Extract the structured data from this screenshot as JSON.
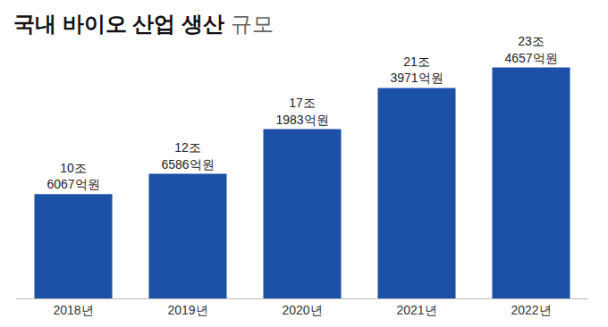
{
  "chart_data": {
    "type": "bar",
    "title": "국내 바이오 산업 생산 규모",
    "categories": [
      "2018년",
      "2019년",
      "2020년",
      "2021년",
      "2022년"
    ],
    "values": [
      106067,
      126586,
      171983,
      213971,
      234657
    ],
    "value_labels": [
      "10조 6067억원",
      "12조 6586억원",
      "17조 1983억원",
      "21조 3971억원",
      "23조 4657억원"
    ],
    "color": "#1c4fa6",
    "data_labels": true,
    "tick_labels": "x",
    "grid": false
  }
}
